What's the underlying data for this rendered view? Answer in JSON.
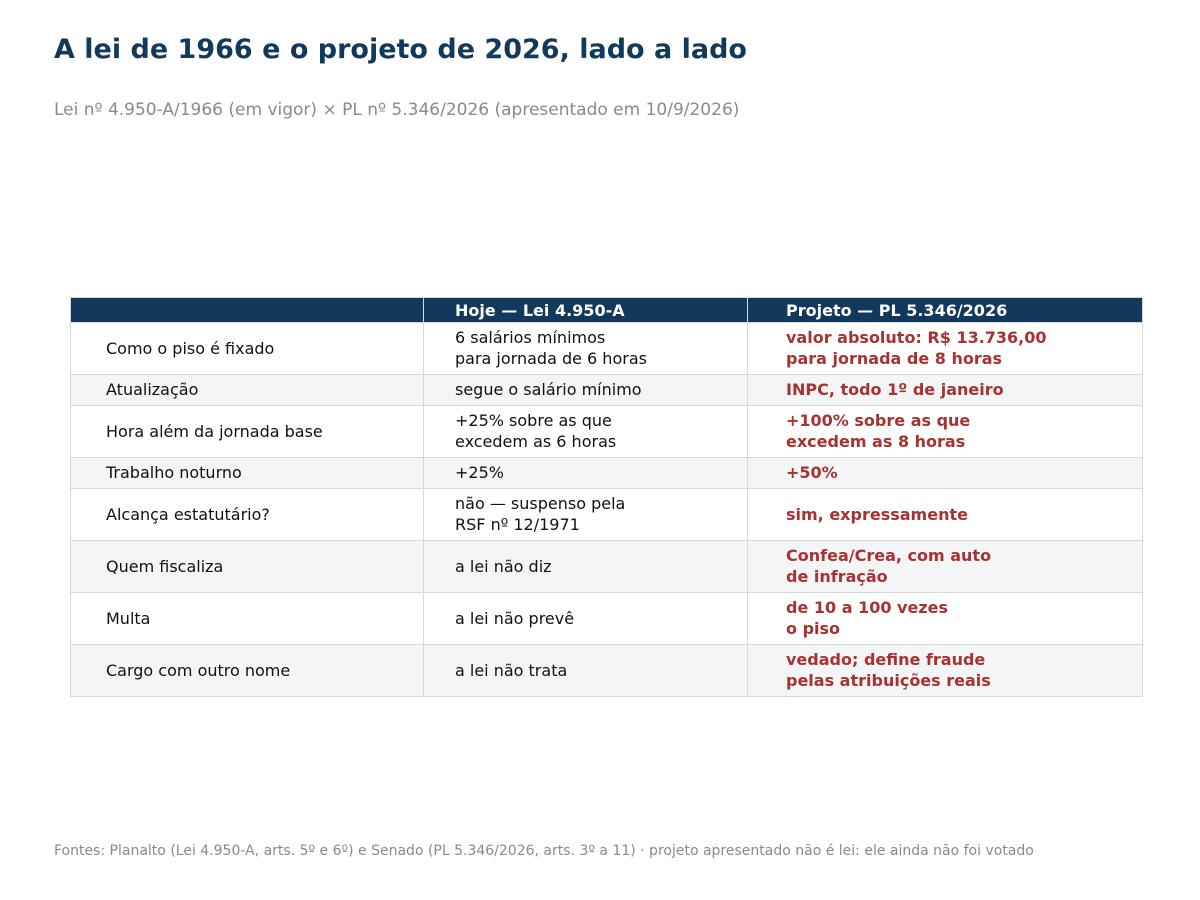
{
  "title": "A lei de 1966 e o projeto de 2026, lado a lado",
  "subtitle": "Lei nº 4.950-A/1966 (em vigor) × PL nº 5.346/2026 (apresentado em 10/9/2026)",
  "table": {
    "headers": [
      "",
      "Hoje — Lei 4.950-A",
      "Projeto — PL 5.346/2026"
    ],
    "rows": [
      {
        "aspect": "Como o piso é fixado",
        "current": "6 salários mínimos\npara jornada de 6 horas",
        "proposed": "valor absoluto: R$ 13.736,00\npara jornada de 8 horas"
      },
      {
        "aspect": "Atualização",
        "current": "segue o salário mínimo",
        "proposed": "INPC, todo 1º de janeiro"
      },
      {
        "aspect": "Hora além da jornada base",
        "current": "+25% sobre as que\nexcedem as 6 horas",
        "proposed": "+100% sobre as que\nexcedem as 8 horas"
      },
      {
        "aspect": "Trabalho noturno",
        "current": "+25%",
        "proposed": "+50%"
      },
      {
        "aspect": "Alcança estatutário?",
        "current": "não — suspenso pela\nRSF nº 12/1971",
        "proposed": "sim, expressamente"
      },
      {
        "aspect": "Quem fiscaliza",
        "current": "a lei não diz",
        "proposed": "Confea/Crea, com auto\nde infração"
      },
      {
        "aspect": "Multa",
        "current": "a lei não prevê",
        "proposed": "de 10 a 100 vezes\no piso"
      },
      {
        "aspect": "Cargo com outro nome",
        "current": "a lei não trata",
        "proposed": "vedado; define fraude\npelas atribuições reais"
      }
    ]
  },
  "colors": {
    "header_bg": "#12395c",
    "title": "#12395c",
    "proposed_text": "#a83232",
    "stripe": "#f4f5f7"
  },
  "footer": "Fontes: Planalto (Lei 4.950-A, arts. 5º e 6º) e Senado (PL 5.346/2026, arts. 3º a 11) · projeto apresentado não é lei: ele ainda não foi votado"
}
